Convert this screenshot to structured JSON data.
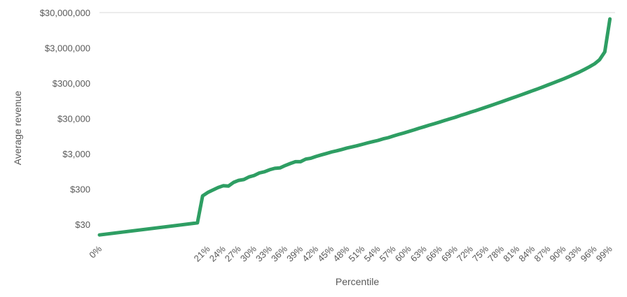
{
  "chart_data": {
    "type": "line",
    "xlabel": "Percentile",
    "ylabel": "Average revenue",
    "y_scale": "log",
    "ylim": [
      10,
      30000000
    ],
    "y_ticks": [
      {
        "value": 30,
        "label": "$30"
      },
      {
        "value": 300,
        "label": "$300"
      },
      {
        "value": 3000,
        "label": "$3,000"
      },
      {
        "value": 30000,
        "label": "$30,000"
      },
      {
        "value": 300000,
        "label": "$300,000"
      },
      {
        "value": 3000000,
        "label": "$3,000,000"
      },
      {
        "value": 30000000,
        "label": "$30,000,000"
      }
    ],
    "x_tick_labels": [
      "0%",
      "21%",
      "24%",
      "27%",
      "30%",
      "33%",
      "36%",
      "39%",
      "42%",
      "45%",
      "48%",
      "51%",
      "54%",
      "57%",
      "60%",
      "63%",
      "66%",
      "69%",
      "72%",
      "75%",
      "78%",
      "81%",
      "84%",
      "87%",
      "90%",
      "93%",
      "96%",
      "99%"
    ],
    "grid": {
      "horizontal": "top-only"
    },
    "series": [
      {
        "color": "#2e9e63",
        "x": [
          "0%",
          "19%",
          "20%",
          "21%",
          "22%",
          "23%",
          "24%",
          "25%",
          "26%",
          "27%",
          "28%",
          "29%",
          "30%",
          "31%",
          "32%",
          "33%",
          "34%",
          "35%",
          "36%",
          "37%",
          "38%",
          "39%",
          "40%",
          "41%",
          "42%",
          "43%",
          "44%",
          "45%",
          "46%",
          "47%",
          "48%",
          "49%",
          "50%",
          "51%",
          "52%",
          "53%",
          "54%",
          "55%",
          "56%",
          "57%",
          "58%",
          "59%",
          "60%",
          "61%",
          "62%",
          "63%",
          "64%",
          "65%",
          "66%",
          "67%",
          "68%",
          "69%",
          "70%",
          "71%",
          "72%",
          "73%",
          "74%",
          "75%",
          "76%",
          "77%",
          "78%",
          "79%",
          "80%",
          "81%",
          "82%",
          "83%",
          "84%",
          "85%",
          "86%",
          "87%",
          "88%",
          "89%",
          "90%",
          "91%",
          "92%",
          "93%",
          "94%",
          "95%",
          "96%",
          "97%",
          "98%",
          "99%"
        ],
        "values": [
          15,
          33,
          192,
          240,
          282,
          330,
          372,
          363,
          462,
          528,
          558,
          660,
          726,
          858,
          924,
          1056,
          1155,
          1188,
          1386,
          1584,
          1782,
          1782,
          2112,
          2244,
          2508,
          2772,
          3036,
          3366,
          3630,
          3960,
          4356,
          4686,
          5082,
          5544,
          6072,
          6600,
          7128,
          7920,
          8580,
          9570,
          10560,
          11550,
          12870,
          14190,
          15840,
          17490,
          19470,
          21450,
          23760,
          26400,
          29370,
          32340,
          36300,
          40260,
          45210,
          50160,
          56100,
          62700,
          70290,
          79200,
          89100,
          100320,
          112860,
          127050,
          143550,
          162030,
          183150,
          206250,
          234300,
          267300,
          303600,
          346500,
          396000,
          455400,
          528000,
          613800,
          726000,
          867900,
          1056000,
          1386000,
          2310000,
          19800000
        ]
      }
    ]
  }
}
